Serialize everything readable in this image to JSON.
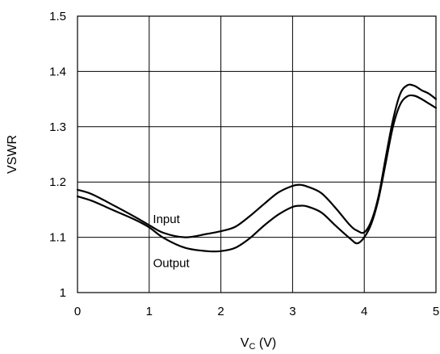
{
  "chart_data": {
    "type": "line",
    "xlabel": "V",
    "xlabel_sub": "C",
    "xlabel_unit": " (V)",
    "ylabel": "VSWR",
    "xlim": [
      0,
      5
    ],
    "ylim": [
      1,
      1.5
    ],
    "grid": true,
    "x_ticks": [
      0,
      1,
      2,
      3,
      4,
      5
    ],
    "x_tick_labels": [
      "0",
      "1",
      "2",
      "3",
      "4",
      "5"
    ],
    "y_ticks": [
      1,
      1.1,
      1.2,
      1.3,
      1.4,
      1.5
    ],
    "y_tick_labels": [
      "1",
      "1.1",
      "1.2",
      "1.3",
      "1.4",
      "1.5"
    ],
    "annotations": {
      "input": {
        "text": "Input",
        "x": 1.15,
        "y": 1.133
      },
      "output": {
        "text": "Output",
        "x": 1.15,
        "y": 1.053
      }
    },
    "series": [
      {
        "key": "upper",
        "x": [
          0,
          0.2,
          0.5,
          0.8,
          1.0,
          1.2,
          1.5,
          1.8,
          2.0,
          2.2,
          2.4,
          2.6,
          2.8,
          3.0,
          3.1,
          3.2,
          3.4,
          3.6,
          3.8,
          3.9,
          4.0,
          4.1,
          4.2,
          4.3,
          4.4,
          4.5,
          4.6,
          4.7,
          4.8,
          4.9,
          5.0
        ],
        "values": [
          1.186,
          1.178,
          1.158,
          1.137,
          1.122,
          1.108,
          1.1,
          1.106,
          1.111,
          1.119,
          1.138,
          1.16,
          1.181,
          1.193,
          1.195,
          1.192,
          1.18,
          1.153,
          1.122,
          1.112,
          1.109,
          1.13,
          1.175,
          1.245,
          1.312,
          1.359,
          1.375,
          1.374,
          1.366,
          1.36,
          1.35
        ]
      },
      {
        "key": "lower",
        "x": [
          0,
          0.2,
          0.5,
          0.8,
          1.0,
          1.2,
          1.5,
          1.8,
          2.0,
          2.2,
          2.4,
          2.6,
          2.8,
          3.0,
          3.1,
          3.2,
          3.4,
          3.6,
          3.8,
          3.9,
          4.0,
          4.1,
          4.2,
          4.3,
          4.4,
          4.5,
          4.6,
          4.7,
          4.8,
          4.9,
          5.0
        ],
        "values": [
          1.174,
          1.166,
          1.149,
          1.132,
          1.118,
          1.099,
          1.081,
          1.075,
          1.075,
          1.081,
          1.098,
          1.121,
          1.141,
          1.155,
          1.157,
          1.156,
          1.145,
          1.121,
          1.098,
          1.089,
          1.1,
          1.125,
          1.17,
          1.235,
          1.3,
          1.34,
          1.355,
          1.356,
          1.35,
          1.342,
          1.334
        ]
      }
    ]
  }
}
